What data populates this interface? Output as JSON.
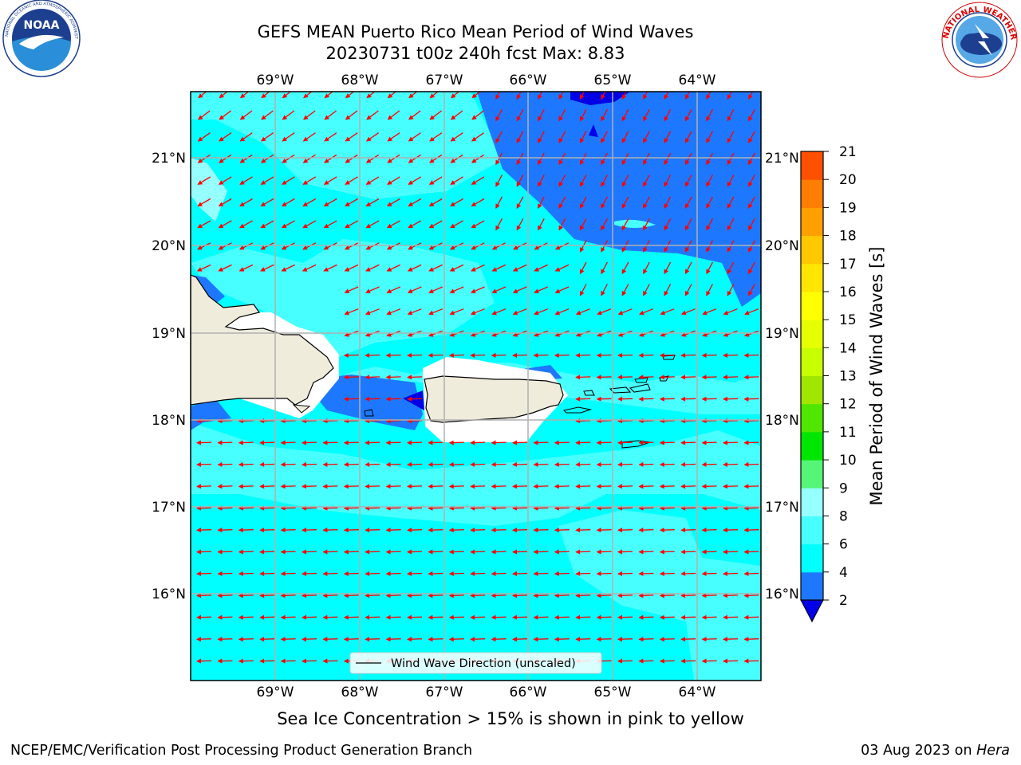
{
  "header": {
    "title_line1": "GEFS MEAN Puerto Rico Mean Period of Wind Waves",
    "title_line2": "20230731 t00z 240h fcst   Max: 8.83"
  },
  "logos": {
    "left": {
      "icon": "noaa-logo-icon",
      "text": "NOAA",
      "ring_text": "NATIONAL OCEANIC AND ATMOSPHERIC ADMINISTRATION · U.S. DEPARTMENT OF COMMERCE"
    },
    "right": {
      "icon": "nws-logo-icon",
      "ring_text": "NATIONAL WEATHER SERVICE"
    }
  },
  "map": {
    "lon_labels": [
      "69°W",
      "68°W",
      "67°W",
      "66°W",
      "65°W",
      "64°W"
    ],
    "lat_labels": [
      "21°N",
      "20°N",
      "19°N",
      "18°N",
      "17°N",
      "16°N"
    ],
    "legend_label": "Wind Wave Direction (unscaled)",
    "arrow_color": "#ff0000",
    "land_color": "#efecdc"
  },
  "colorbar": {
    "label": "Mean Period of Wind Waves [s]",
    "tick_labels": [
      "21",
      "20",
      "19",
      "18",
      "17",
      "16",
      "15",
      "14",
      "13",
      "12",
      "11",
      "10",
      "9",
      "8",
      "6",
      "4",
      "2"
    ],
    "colors": [
      "#0000e6",
      "#1e78ff",
      "#00ffff",
      "#48ffff",
      "#96ffff",
      "#55f578",
      "#00e600",
      "#50e600",
      "#a0e600",
      "#c8ff00",
      "#e6ff00",
      "#ffff00",
      "#ffe600",
      "#ffc800",
      "#ffa000",
      "#ff7d00",
      "#ff5000",
      "#ff2800",
      "#ff0000"
    ]
  },
  "footer": {
    "subtitle": "Sea Ice Concentration > 15% is shown in pink to yellow",
    "left": "NCEP/EMC/Verification Post Processing Product Generation Branch",
    "right_date": "03 Aug 2023 on ",
    "right_host": "Hera"
  }
}
